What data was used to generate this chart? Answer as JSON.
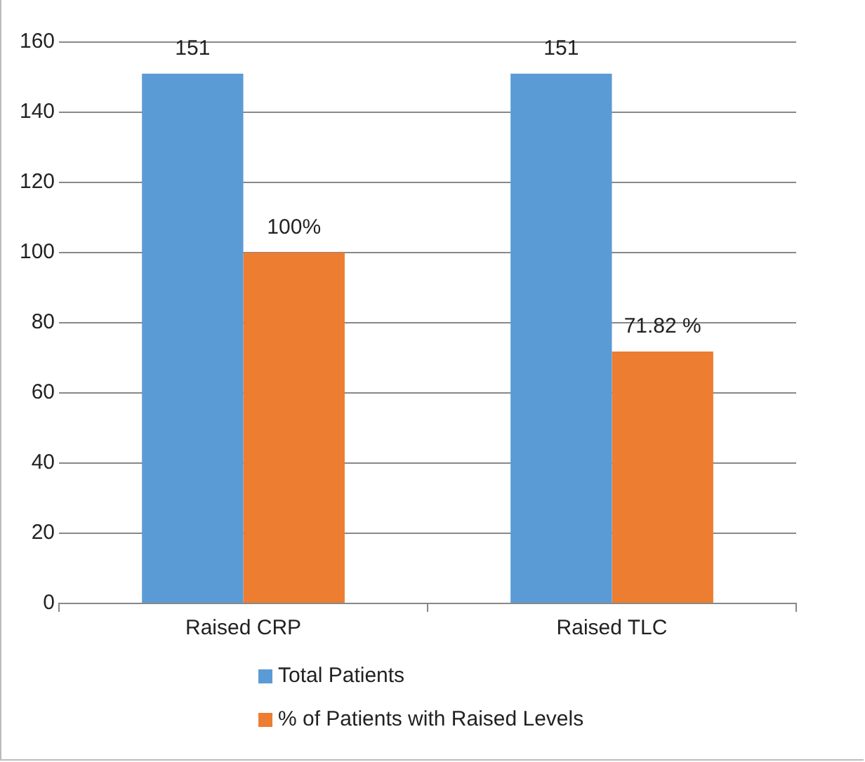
{
  "chart_data": {
    "type": "bar",
    "categories": [
      "Raised CRP",
      "Raised TLC"
    ],
    "series": [
      {
        "name": "Total Patients",
        "color": "#5b9bd5",
        "values": [
          151,
          151
        ],
        "value_labels": [
          "151",
          "151"
        ]
      },
      {
        "name": "% of Patients with Raised Levels",
        "color": "#ed7d31",
        "values": [
          100,
          71.82
        ],
        "value_labels": [
          "100%",
          "71.82 %"
        ]
      }
    ],
    "ylim": [
      0,
      160
    ],
    "yticks": [
      0,
      20,
      40,
      60,
      80,
      100,
      120,
      140,
      160
    ],
    "grid": "y",
    "legend": "bottom"
  }
}
